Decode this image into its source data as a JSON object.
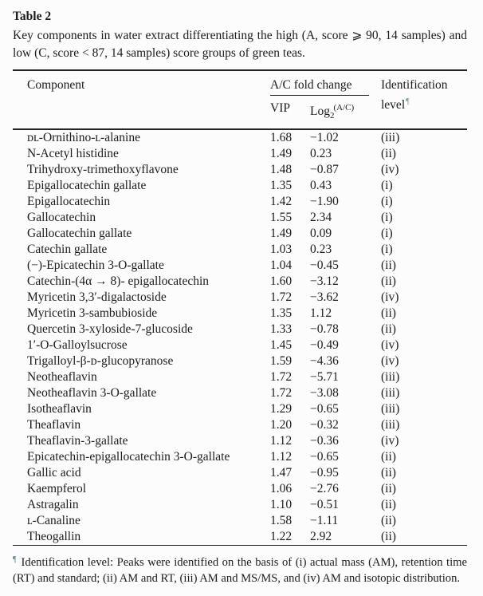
{
  "table": {
    "label": "Table 2",
    "caption": "Key components in water extract differentiating the high (A, score ⩾ 90, 14 samples) and low (C, score < 87, 14 samples) score groups of green teas.",
    "columns": {
      "component": "Component",
      "fold_change": "A/C fold change",
      "vip": "VIP",
      "log_base": "Log",
      "log_subscript": "2",
      "log_superscript": "(A/C)",
      "identification": "Identification level",
      "footnote_mark": "¶"
    },
    "rows": [
      {
        "component": "ᴅʟ-Ornithino-ʟ-alanine",
        "vip": "1.68",
        "log2": "−1.02",
        "level": "(iii)"
      },
      {
        "component": "N-Acetyl histidine",
        "vip": "1.49",
        "log2": "0.23",
        "level": "(ii)"
      },
      {
        "component": "Trihydroxy-trimethoxyflavone",
        "vip": "1.48",
        "log2": "−0.87",
        "level": "(iv)"
      },
      {
        "component": "Epigallocatechin gallate",
        "vip": "1.35",
        "log2": "0.43",
        "level": "(i)"
      },
      {
        "component": "Epigallocatechin",
        "vip": "1.42",
        "log2": "−1.90",
        "level": "(i)"
      },
      {
        "component": "Gallocatechin",
        "vip": "1.55",
        "log2": "2.34",
        "level": "(i)"
      },
      {
        "component": "Gallocatechin gallate",
        "vip": "1.49",
        "log2": "0.09",
        "level": "(i)"
      },
      {
        "component": "Catechin gallate",
        "vip": "1.03",
        "log2": "0.23",
        "level": "(i)"
      },
      {
        "component": "(−)-Epicatechin 3-O-gallate",
        "vip": "1.04",
        "log2": "−0.45",
        "level": "(ii)"
      },
      {
        "component": "Catechin-(4α → 8)- epigallocatechin",
        "vip": "1.60",
        "log2": "−3.12",
        "level": "(ii)"
      },
      {
        "component": "Myricetin 3,3′-digalactoside",
        "vip": "1.72",
        "log2": "−3.62",
        "level": "(iv)"
      },
      {
        "component": "Myricetin 3-sambubioside",
        "vip": "1.35",
        "log2": "1.12",
        "level": "(ii)"
      },
      {
        "component": "Quercetin 3-xyloside-7-glucoside",
        "vip": "1.33",
        "log2": "−0.78",
        "level": "(ii)"
      },
      {
        "component": "1′-O-Galloylsucrose",
        "vip": "1.45",
        "log2": "−0.49",
        "level": "(iv)"
      },
      {
        "component": "Trigalloyl-β-ᴅ-glucopyranose",
        "vip": "1.59",
        "log2": "−4.36",
        "level": "(iv)"
      },
      {
        "component": "Neotheaflavin",
        "vip": "1.72",
        "log2": "−5.71",
        "level": "(iii)"
      },
      {
        "component": "Neotheaflavin 3-O-gallate",
        "vip": "1.72",
        "log2": "−3.08",
        "level": "(iii)"
      },
      {
        "component": "Isotheaflavin",
        "vip": "1.29",
        "log2": "−0.65",
        "level": "(iii)"
      },
      {
        "component": "Theaflavin",
        "vip": "1.20",
        "log2": "−0.32",
        "level": "(iii)"
      },
      {
        "component": "Theaflavin-3-gallate",
        "vip": "1.12",
        "log2": "−0.36",
        "level": "(iv)"
      },
      {
        "component": "Epicatechin-epigallocatechin 3-O-gallate",
        "vip": "1.12",
        "log2": "−0.65",
        "level": "(ii)"
      },
      {
        "component": "Gallic acid",
        "vip": "1.47",
        "log2": "−0.95",
        "level": "(ii)"
      },
      {
        "component": "Kaempferol",
        "vip": "1.06",
        "log2": "−2.76",
        "level": "(ii)"
      },
      {
        "component": "Astragalin",
        "vip": "1.10",
        "log2": "−0.51",
        "level": "(ii)"
      },
      {
        "component": "ʟ-Canaline",
        "vip": "1.58",
        "log2": "−1.11",
        "level": "(ii)"
      },
      {
        "component": "Theogallin",
        "vip": "1.22",
        "log2": "2.92",
        "level": "(ii)"
      }
    ],
    "footnote": {
      "mark": "¶",
      "text": "Identification level: Peaks were identified on the basis of (i) actual mass (AM), retention time (RT) and standard; (ii) AM and RT, (iii) AM and MS/MS, and (iv) AM and isotopic distribution."
    }
  }
}
